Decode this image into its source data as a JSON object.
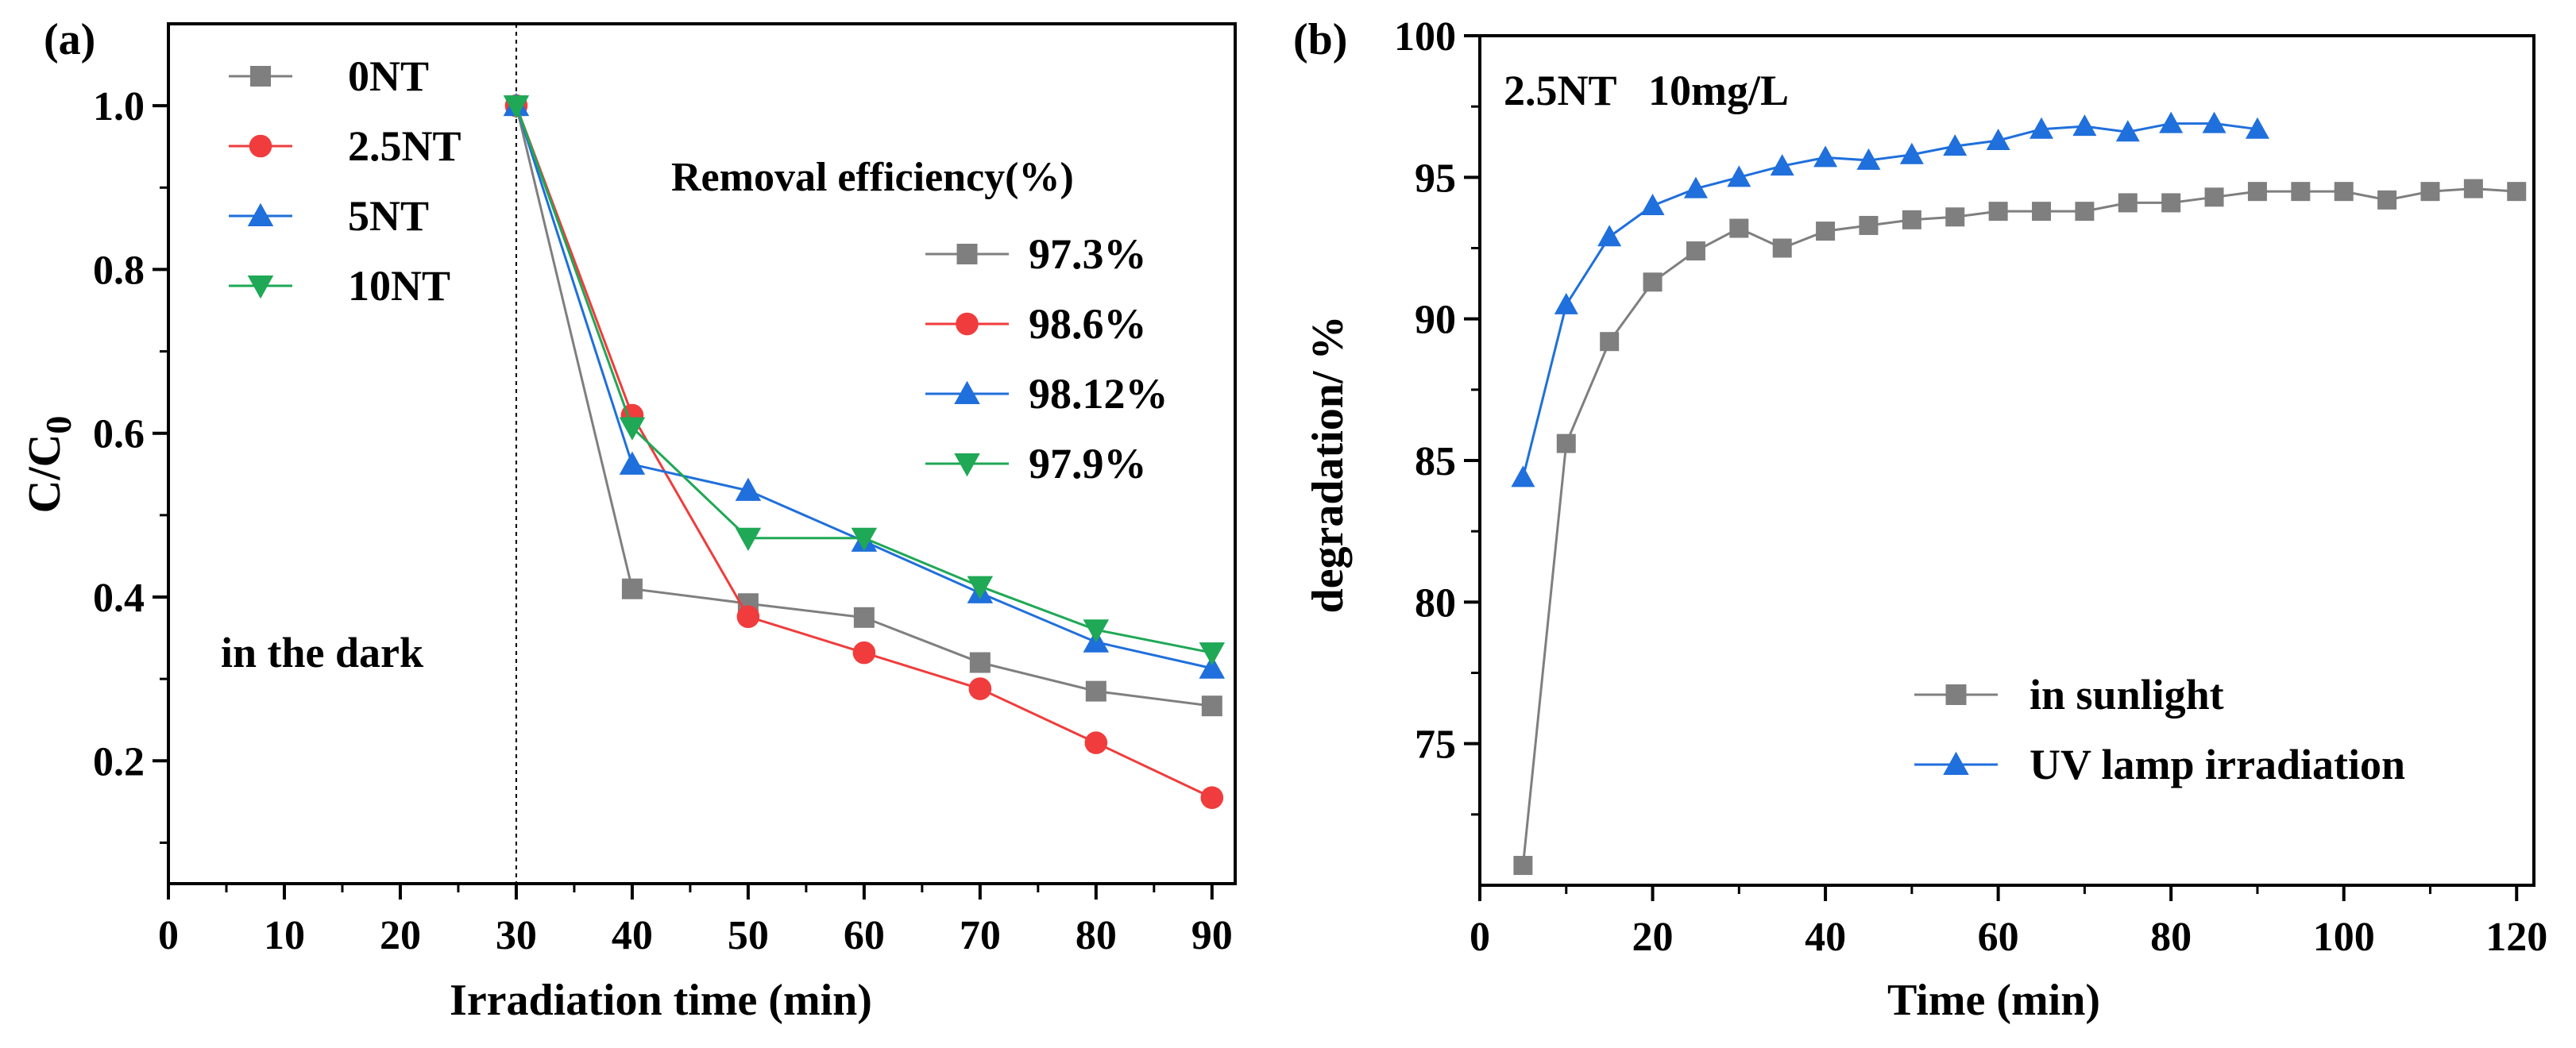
{
  "chart_data": [
    {
      "panel_label": "(a)",
      "type": "line",
      "xlabel": "Irradiation time (min)",
      "ylabel": {
        "main": "C/C",
        "sub": "0"
      },
      "xlim": [
        0,
        92
      ],
      "ylim": [
        0.05,
        1.1
      ],
      "xticks": [
        0,
        10,
        20,
        30,
        40,
        50,
        60,
        70,
        80,
        90
      ],
      "yticks": [
        0.2,
        0.4,
        0.6,
        0.8,
        1.0
      ],
      "ytick_labels": [
        "0.2",
        "0.4",
        "0.6",
        "0.8",
        "1.0"
      ],
      "x": [
        30,
        40,
        50,
        60,
        70,
        80,
        90
      ],
      "annotation": "in the dark",
      "dark_line_x": 30,
      "legend_title": "Removal efficiency(%)",
      "series": [
        {
          "name": "0NT",
          "efficiency": "97.3%",
          "color": "#7f7f7f",
          "marker": "square",
          "values": [
            1.0,
            0.41,
            0.392,
            0.375,
            0.32,
            0.285,
            0.267
          ]
        },
        {
          "name": "2.5NT",
          "efficiency": "98.6%",
          "color": "#f03c3c",
          "marker": "circle",
          "values": [
            1.0,
            0.622,
            0.376,
            0.332,
            0.288,
            0.222,
            0.155
          ]
        },
        {
          "name": "5NT",
          "efficiency": "98.12%",
          "color": "#1f6fdc",
          "marker": "triangle-up",
          "values": [
            1.0,
            0.562,
            0.53,
            0.468,
            0.405,
            0.345,
            0.313
          ]
        },
        {
          "name": "10NT",
          "efficiency": "97.9%",
          "color": "#1fa855",
          "marker": "triangle-down",
          "values": [
            1.0,
            0.607,
            0.472,
            0.472,
            0.413,
            0.36,
            0.332
          ]
        }
      ]
    },
    {
      "panel_label": "(b)",
      "type": "line",
      "xlabel": "Time (min)",
      "ylabel": "degradation/ %",
      "xlim": [
        0,
        122
      ],
      "ylim": [
        70,
        100
      ],
      "xticks": [
        0,
        20,
        40,
        60,
        80,
        100,
        120
      ],
      "yticks": [
        75,
        80,
        85,
        90,
        95,
        100
      ],
      "annotation": "2.5NT   10mg/L",
      "series": [
        {
          "name": "in sunlight",
          "color": "#7f7f7f",
          "marker": "square",
          "x": [
            5,
            10,
            15,
            20,
            25,
            30,
            35,
            40,
            45,
            50,
            55,
            60,
            65,
            70,
            75,
            80,
            85,
            90,
            95,
            100,
            105,
            110,
            115,
            120
          ],
          "values": [
            70.7,
            85.6,
            89.2,
            91.3,
            92.4,
            93.2,
            92.5,
            93.1,
            93.3,
            93.5,
            93.6,
            93.8,
            93.8,
            93.8,
            94.1,
            94.1,
            94.3,
            94.5,
            94.5,
            94.5,
            94.2,
            94.5,
            94.6,
            94.5
          ]
        },
        {
          "name": "UV lamp irradiation",
          "color": "#1f6fdc",
          "marker": "triangle-up",
          "x": [
            5,
            10,
            15,
            20,
            25,
            30,
            35,
            40,
            45,
            50,
            55,
            60,
            65,
            70,
            75,
            80,
            85,
            90
          ],
          "values": [
            84.4,
            90.5,
            92.9,
            94.0,
            94.6,
            95.0,
            95.4,
            95.7,
            95.6,
            95.8,
            96.1,
            96.3,
            96.7,
            96.8,
            96.6,
            96.9,
            96.9,
            96.7
          ]
        }
      ]
    }
  ]
}
